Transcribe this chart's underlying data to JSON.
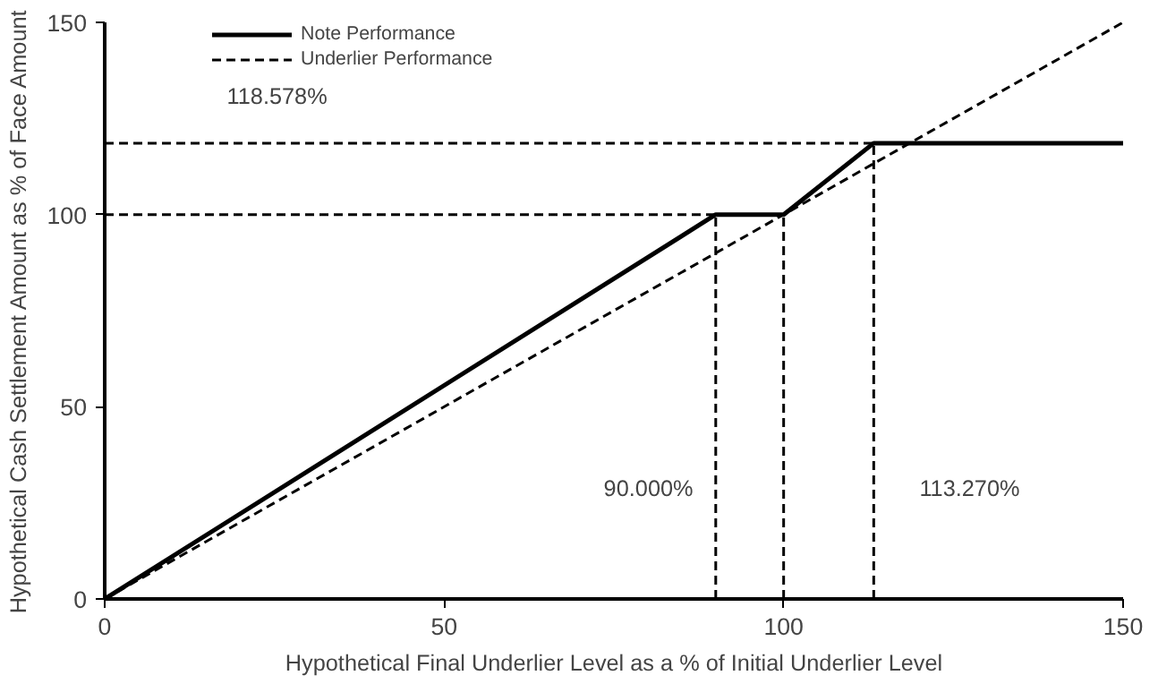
{
  "chart_data": {
    "type": "line",
    "xlabel": "Hypothetical Final Underlier Level as a % of Initial Underlier Level",
    "ylabel": "Hypothetical Cash Settlement Amount as % of Face Amount",
    "xlim": [
      0,
      150
    ],
    "ylim": [
      0,
      150
    ],
    "xticks": [
      0,
      50,
      100,
      150
    ],
    "yticks": [
      0,
      50,
      100,
      150
    ],
    "grid": false,
    "legend": "top left",
    "marker": "none",
    "series": [
      {
        "name": "Note Performance",
        "color": "#000000",
        "line_style": "solid",
        "x": [
          0,
          90,
          100,
          113.27,
          150
        ],
        "values": [
          0,
          100,
          100,
          118.578,
          118.578
        ]
      },
      {
        "name": "Underlier Performance",
        "color": "#000000",
        "line_style": "dashed",
        "x": [
          0,
          150
        ],
        "values": [
          0,
          150
        ]
      },
      {
        "color": "#000000",
        "line_style": "dashed",
        "x": [
          0,
          90
        ],
        "values": [
          100,
          100
        ]
      },
      {
        "color": "#000000",
        "line_style": "dashed",
        "x": [
          0,
          113.27
        ],
        "values": [
          118.578,
          118.578
        ]
      },
      {
        "color": "#000000",
        "line_style": "dashed",
        "x": [
          90,
          90
        ],
        "values": [
          0,
          100
        ]
      },
      {
        "color": "#000000",
        "line_style": "dashed",
        "x": [
          100,
          100
        ],
        "values": [
          0,
          100
        ]
      },
      {
        "color": "#000000",
        "line_style": "dashed",
        "x": [
          113.27,
          113.27
        ],
        "values": [
          0,
          118.578
        ]
      }
    ],
    "annotations": [
      "118.578%",
      "90.000%",
      "113.270%"
    ]
  }
}
